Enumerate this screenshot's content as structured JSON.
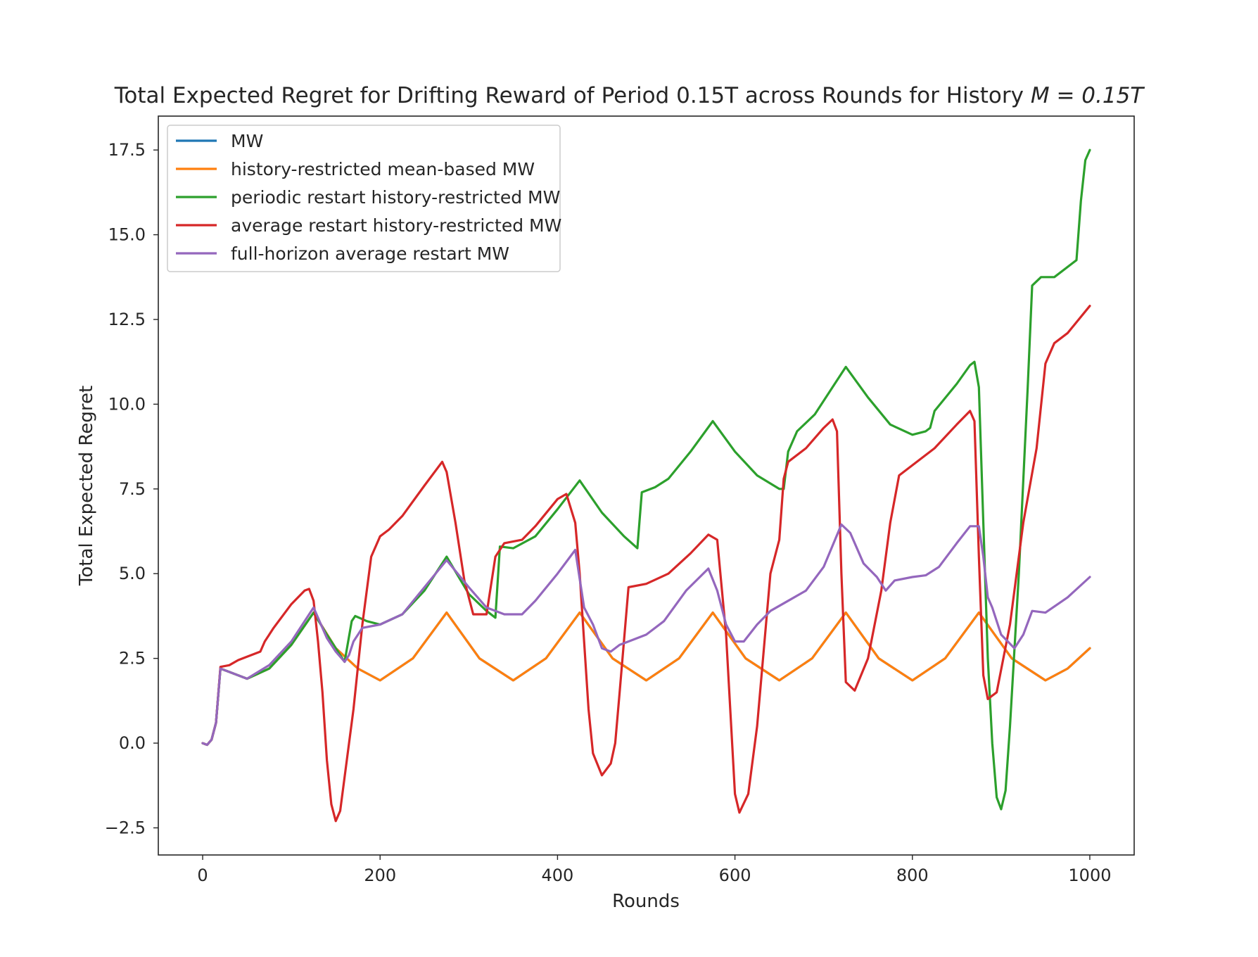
{
  "chart_data": {
    "type": "line",
    "title": "Total Expected Regret for Drifting Reward of Period 0.15T across Rounds for History",
    "title_math": "M = 0.15T",
    "xlabel": "Rounds",
    "ylabel": "Total Expected Regret",
    "xlim": [
      -50,
      1050
    ],
    "ylim": [
      -3.3,
      18.5
    ],
    "xticks": [
      0,
      200,
      400,
      600,
      800,
      1000
    ],
    "yticks": [
      -2.5,
      0.0,
      2.5,
      5.0,
      7.5,
      10.0,
      12.5,
      15.0,
      17.5
    ],
    "xtick_labels": [
      "0",
      "200",
      "400",
      "600",
      "800",
      "1000"
    ],
    "ytick_labels": [
      "−2.5",
      "0.0",
      "2.5",
      "5.0",
      "7.5",
      "10.0",
      "12.5",
      "15.0",
      "17.5"
    ],
    "grid": false,
    "legend_position": "top-left",
    "series": [
      {
        "name": "MW",
        "color": "#1f77b4",
        "points": [
          [
            0,
            0
          ],
          [
            5,
            -0.05
          ],
          [
            10,
            0.1
          ],
          [
            15,
            0.6
          ],
          [
            20,
            2.2
          ],
          [
            30,
            2.1
          ],
          [
            50,
            1.9
          ],
          [
            75,
            2.2
          ],
          [
            100,
            2.9
          ],
          [
            125,
            3.85
          ],
          [
            150,
            2.8
          ],
          [
            175,
            2.2
          ],
          [
            200,
            1.85
          ],
          [
            237,
            2.5
          ],
          [
            275,
            3.85
          ],
          [
            312,
            2.5
          ],
          [
            350,
            1.85
          ],
          [
            387,
            2.5
          ],
          [
            425,
            3.85
          ],
          [
            462,
            2.5
          ],
          [
            500,
            1.85
          ],
          [
            537,
            2.5
          ],
          [
            575,
            3.85
          ],
          [
            612,
            2.5
          ],
          [
            650,
            1.85
          ],
          [
            687,
            2.5
          ],
          [
            725,
            3.85
          ],
          [
            762,
            2.5
          ],
          [
            800,
            1.85
          ],
          [
            837,
            2.5
          ],
          [
            875,
            3.85
          ],
          [
            912,
            2.5
          ],
          [
            950,
            1.85
          ],
          [
            975,
            2.2
          ],
          [
            1000,
            2.8
          ]
        ]
      },
      {
        "name": "history-restricted mean-based MW",
        "color": "#ff7f0e",
        "points": [
          [
            0,
            0
          ],
          [
            5,
            -0.05
          ],
          [
            10,
            0.1
          ],
          [
            15,
            0.6
          ],
          [
            20,
            2.2
          ],
          [
            30,
            2.1
          ],
          [
            50,
            1.9
          ],
          [
            75,
            2.2
          ],
          [
            100,
            2.9
          ],
          [
            125,
            3.85
          ],
          [
            150,
            2.8
          ],
          [
            175,
            2.2
          ],
          [
            200,
            1.85
          ],
          [
            237,
            2.5
          ],
          [
            275,
            3.85
          ],
          [
            312,
            2.5
          ],
          [
            350,
            1.85
          ],
          [
            387,
            2.5
          ],
          [
            425,
            3.85
          ],
          [
            462,
            2.5
          ],
          [
            500,
            1.85
          ],
          [
            537,
            2.5
          ],
          [
            575,
            3.85
          ],
          [
            612,
            2.5
          ],
          [
            650,
            1.85
          ],
          [
            687,
            2.5
          ],
          [
            725,
            3.85
          ],
          [
            762,
            2.5
          ],
          [
            800,
            1.85
          ],
          [
            837,
            2.5
          ],
          [
            875,
            3.85
          ],
          [
            912,
            2.5
          ],
          [
            950,
            1.85
          ],
          [
            975,
            2.2
          ],
          [
            1000,
            2.8
          ]
        ]
      },
      {
        "name": "periodic restart history-restricted MW",
        "color": "#2ca02c",
        "points": [
          [
            0,
            0
          ],
          [
            5,
            -0.05
          ],
          [
            10,
            0.1
          ],
          [
            15,
            0.6
          ],
          [
            20,
            2.2
          ],
          [
            30,
            2.1
          ],
          [
            50,
            1.9
          ],
          [
            75,
            2.2
          ],
          [
            100,
            2.9
          ],
          [
            125,
            3.85
          ],
          [
            140,
            3.2
          ],
          [
            160,
            2.4
          ],
          [
            168,
            3.6
          ],
          [
            172,
            3.75
          ],
          [
            185,
            3.6
          ],
          [
            200,
            3.5
          ],
          [
            225,
            3.8
          ],
          [
            250,
            4.5
          ],
          [
            275,
            5.5
          ],
          [
            300,
            4.4
          ],
          [
            320,
            3.9
          ],
          [
            330,
            3.7
          ],
          [
            335,
            5.8
          ],
          [
            350,
            5.75
          ],
          [
            375,
            6.1
          ],
          [
            400,
            6.9
          ],
          [
            425,
            7.75
          ],
          [
            450,
            6.8
          ],
          [
            475,
            6.1
          ],
          [
            490,
            5.75
          ],
          [
            495,
            7.4
          ],
          [
            510,
            7.55
          ],
          [
            525,
            7.8
          ],
          [
            550,
            8.6
          ],
          [
            575,
            9.5
          ],
          [
            600,
            8.6
          ],
          [
            625,
            7.9
          ],
          [
            650,
            7.5
          ],
          [
            655,
            7.5
          ],
          [
            660,
            8.6
          ],
          [
            670,
            9.2
          ],
          [
            690,
            9.7
          ],
          [
            710,
            10.5
          ],
          [
            725,
            11.1
          ],
          [
            750,
            10.2
          ],
          [
            775,
            9.4
          ],
          [
            800,
            9.1
          ],
          [
            815,
            9.2
          ],
          [
            820,
            9.3
          ],
          [
            825,
            9.8
          ],
          [
            850,
            10.6
          ],
          [
            865,
            11.15
          ],
          [
            870,
            11.25
          ],
          [
            875,
            10.5
          ],
          [
            880,
            6.5
          ],
          [
            885,
            2.5
          ],
          [
            890,
            0.0
          ],
          [
            895,
            -1.6
          ],
          [
            900,
            -1.95
          ],
          [
            905,
            -1.4
          ],
          [
            910,
            0.5
          ],
          [
            920,
            5.0
          ],
          [
            930,
            10.5
          ],
          [
            935,
            13.5
          ],
          [
            945,
            13.75
          ],
          [
            960,
            13.75
          ],
          [
            985,
            14.25
          ],
          [
            990,
            16.0
          ],
          [
            995,
            17.2
          ],
          [
            1000,
            17.5
          ]
        ]
      },
      {
        "name": "average restart history-restricted MW",
        "color": "#d62728",
        "points": [
          [
            0,
            0
          ],
          [
            5,
            -0.05
          ],
          [
            10,
            0.1
          ],
          [
            15,
            0.6
          ],
          [
            20,
            2.25
          ],
          [
            30,
            2.3
          ],
          [
            40,
            2.45
          ],
          [
            50,
            2.55
          ],
          [
            65,
            2.7
          ],
          [
            70,
            3.0
          ],
          [
            80,
            3.4
          ],
          [
            100,
            4.1
          ],
          [
            115,
            4.5
          ],
          [
            120,
            4.55
          ],
          [
            125,
            4.2
          ],
          [
            130,
            3.0
          ],
          [
            135,
            1.5
          ],
          [
            140,
            -0.5
          ],
          [
            145,
            -1.8
          ],
          [
            150,
            -2.3
          ],
          [
            155,
            -2.0
          ],
          [
            160,
            -1.0
          ],
          [
            170,
            1.0
          ],
          [
            180,
            3.5
          ],
          [
            190,
            5.5
          ],
          [
            200,
            6.1
          ],
          [
            210,
            6.3
          ],
          [
            225,
            6.7
          ],
          [
            250,
            7.6
          ],
          [
            270,
            8.3
          ],
          [
            275,
            8.0
          ],
          [
            285,
            6.5
          ],
          [
            295,
            4.8
          ],
          [
            305,
            3.8
          ],
          [
            320,
            3.8
          ],
          [
            330,
            5.5
          ],
          [
            340,
            5.9
          ],
          [
            360,
            6.0
          ],
          [
            375,
            6.4
          ],
          [
            400,
            7.2
          ],
          [
            410,
            7.35
          ],
          [
            420,
            6.5
          ],
          [
            425,
            5.0
          ],
          [
            430,
            3.0
          ],
          [
            435,
            1.0
          ],
          [
            440,
            -0.3
          ],
          [
            450,
            -0.95
          ],
          [
            460,
            -0.6
          ],
          [
            465,
            0.0
          ],
          [
            470,
            1.5
          ],
          [
            480,
            4.6
          ],
          [
            500,
            4.7
          ],
          [
            525,
            5.0
          ],
          [
            550,
            5.6
          ],
          [
            570,
            6.15
          ],
          [
            580,
            6.0
          ],
          [
            590,
            3.2
          ],
          [
            600,
            -1.5
          ],
          [
            605,
            -2.05
          ],
          [
            615,
            -1.5
          ],
          [
            625,
            0.5
          ],
          [
            640,
            5.0
          ],
          [
            650,
            6.0
          ],
          [
            655,
            7.8
          ],
          [
            660,
            8.3
          ],
          [
            680,
            8.7
          ],
          [
            700,
            9.3
          ],
          [
            710,
            9.55
          ],
          [
            715,
            9.2
          ],
          [
            720,
            5.0
          ],
          [
            725,
            1.8
          ],
          [
            735,
            1.55
          ],
          [
            750,
            2.5
          ],
          [
            765,
            4.5
          ],
          [
            775,
            6.5
          ],
          [
            785,
            7.9
          ],
          [
            800,
            8.2
          ],
          [
            825,
            8.7
          ],
          [
            850,
            9.4
          ],
          [
            865,
            9.8
          ],
          [
            870,
            9.5
          ],
          [
            875,
            5.5
          ],
          [
            880,
            2.0
          ],
          [
            885,
            1.3
          ],
          [
            895,
            1.5
          ],
          [
            910,
            3.5
          ],
          [
            925,
            6.5
          ],
          [
            940,
            8.7
          ],
          [
            950,
            11.2
          ],
          [
            960,
            11.8
          ],
          [
            975,
            12.1
          ],
          [
            1000,
            12.9
          ]
        ]
      },
      {
        "name": "full-horizon average restart MW",
        "color": "#9467bd",
        "points": [
          [
            0,
            0
          ],
          [
            5,
            -0.05
          ],
          [
            10,
            0.1
          ],
          [
            15,
            0.6
          ],
          [
            20,
            2.2
          ],
          [
            30,
            2.1
          ],
          [
            50,
            1.9
          ],
          [
            75,
            2.3
          ],
          [
            100,
            3.0
          ],
          [
            125,
            4.0
          ],
          [
            140,
            3.1
          ],
          [
            150,
            2.7
          ],
          [
            160,
            2.4
          ],
          [
            165,
            2.6
          ],
          [
            170,
            3.0
          ],
          [
            180,
            3.4
          ],
          [
            200,
            3.5
          ],
          [
            225,
            3.8
          ],
          [
            250,
            4.6
          ],
          [
            275,
            5.4
          ],
          [
            300,
            4.6
          ],
          [
            320,
            4.0
          ],
          [
            340,
            3.8
          ],
          [
            360,
            3.8
          ],
          [
            375,
            4.2
          ],
          [
            400,
            5.0
          ],
          [
            420,
            5.7
          ],
          [
            430,
            4.0
          ],
          [
            440,
            3.5
          ],
          [
            450,
            2.8
          ],
          [
            460,
            2.7
          ],
          [
            470,
            2.9
          ],
          [
            480,
            3.0
          ],
          [
            500,
            3.2
          ],
          [
            520,
            3.6
          ],
          [
            545,
            4.5
          ],
          [
            570,
            5.15
          ],
          [
            580,
            4.5
          ],
          [
            590,
            3.5
          ],
          [
            600,
            3.0
          ],
          [
            610,
            3.0
          ],
          [
            625,
            3.5
          ],
          [
            640,
            3.9
          ],
          [
            660,
            4.2
          ],
          [
            680,
            4.5
          ],
          [
            700,
            5.2
          ],
          [
            720,
            6.45
          ],
          [
            730,
            6.2
          ],
          [
            745,
            5.3
          ],
          [
            760,
            4.9
          ],
          [
            770,
            4.5
          ],
          [
            780,
            4.8
          ],
          [
            800,
            4.9
          ],
          [
            815,
            4.95
          ],
          [
            830,
            5.2
          ],
          [
            850,
            5.9
          ],
          [
            865,
            6.4
          ],
          [
            875,
            6.4
          ],
          [
            880,
            5.5
          ],
          [
            885,
            4.3
          ],
          [
            890,
            4.0
          ],
          [
            900,
            3.2
          ],
          [
            915,
            2.8
          ],
          [
            925,
            3.2
          ],
          [
            935,
            3.9
          ],
          [
            950,
            3.85
          ],
          [
            975,
            4.3
          ],
          [
            1000,
            4.9
          ]
        ]
      }
    ]
  }
}
